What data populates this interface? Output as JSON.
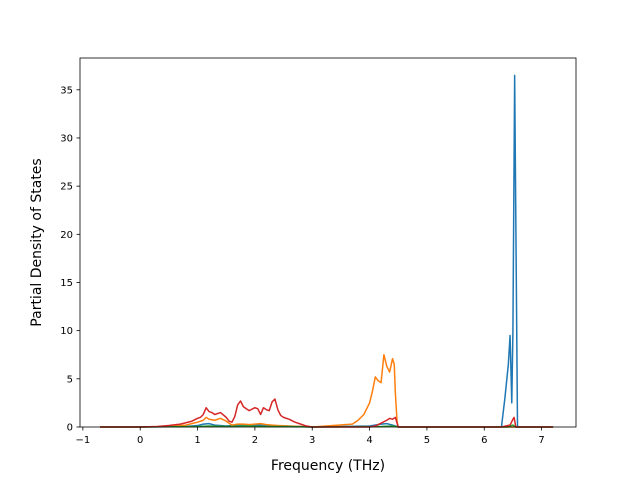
{
  "chart_data": {
    "type": "line",
    "title": "",
    "xlabel": "Frequency (THz)",
    "ylabel": "Partial Density of States",
    "xlim": [
      -1.05,
      7.6
    ],
    "ylim": [
      0,
      38.3
    ],
    "xticks": [
      -1,
      0,
      1,
      2,
      3,
      4,
      5,
      6,
      7
    ],
    "yticks": [
      0,
      5,
      10,
      15,
      20,
      25,
      30,
      35
    ],
    "grid": false,
    "legend": "none",
    "series": [
      {
        "color": "#1f77b4",
        "x": [
          -0.7,
          0.0,
          0.8,
          1.0,
          1.1,
          1.2,
          1.3,
          1.5,
          1.7,
          1.8,
          2.0,
          2.2,
          2.4,
          2.8,
          3.0,
          4.0,
          4.2,
          4.3,
          4.4,
          4.48,
          4.52,
          6.3,
          6.36,
          6.42,
          6.45,
          6.48,
          6.5,
          6.53,
          6.58,
          7.2
        ],
        "y": [
          0,
          0,
          0.05,
          0.15,
          0.3,
          0.35,
          0.2,
          0.1,
          0.2,
          0.25,
          0.2,
          0.15,
          0.1,
          0.05,
          0,
          0.1,
          0.3,
          0.35,
          0.2,
          0.05,
          0,
          0,
          3.0,
          6.5,
          9.5,
          2.5,
          10.0,
          36.5,
          0,
          0
        ]
      },
      {
        "color": "#ff7f0e",
        "x": [
          -0.7,
          0.0,
          0.5,
          0.8,
          0.9,
          1.0,
          1.1,
          1.15,
          1.2,
          1.3,
          1.4,
          1.5,
          1.6,
          1.7,
          1.8,
          1.9,
          2.0,
          2.1,
          2.2,
          2.3,
          2.4,
          2.6,
          2.8,
          3.0,
          3.7,
          3.8,
          3.9,
          4.0,
          4.05,
          4.1,
          4.15,
          4.2,
          4.25,
          4.3,
          4.35,
          4.4,
          4.43,
          4.45,
          4.48,
          4.5,
          7.2
        ],
        "y": [
          0,
          0,
          0.05,
          0.2,
          0.35,
          0.5,
          0.7,
          1.0,
          0.8,
          0.7,
          0.9,
          0.6,
          0.2,
          0.3,
          0.3,
          0.25,
          0.3,
          0.35,
          0.25,
          0.2,
          0.15,
          0.1,
          0.05,
          0,
          0.3,
          0.7,
          1.3,
          2.5,
          3.7,
          5.2,
          4.8,
          4.6,
          7.5,
          6.3,
          5.7,
          7.1,
          6.5,
          3.5,
          0.5,
          0,
          0
        ]
      },
      {
        "color": "#2ca02c",
        "x": [
          -0.7,
          0.0,
          1.0,
          1.2,
          1.5,
          1.8,
          2.2,
          2.6,
          3.0,
          4.2,
          4.4,
          4.5,
          6.4,
          6.5,
          6.55,
          7.2
        ],
        "y": [
          0,
          0,
          0.05,
          0.1,
          0.05,
          0.1,
          0.05,
          0.05,
          0,
          0.05,
          0.1,
          0,
          0,
          0.2,
          0,
          0
        ]
      },
      {
        "color": "#d62728",
        "x": [
          -0.7,
          0.0,
          0.3,
          0.5,
          0.7,
          0.9,
          1.0,
          1.05,
          1.1,
          1.15,
          1.2,
          1.25,
          1.3,
          1.4,
          1.5,
          1.55,
          1.6,
          1.65,
          1.7,
          1.75,
          1.8,
          1.85,
          1.9,
          2.0,
          2.05,
          2.1,
          2.15,
          2.2,
          2.25,
          2.3,
          2.35,
          2.4,
          2.45,
          2.5,
          2.6,
          2.7,
          2.8,
          2.9,
          3.0,
          4.0,
          4.1,
          4.2,
          4.3,
          4.35,
          4.4,
          4.45,
          4.5,
          6.3,
          6.45,
          6.5,
          6.52,
          6.55,
          7.2
        ],
        "y": [
          0,
          0,
          0.05,
          0.15,
          0.3,
          0.6,
          0.9,
          1.0,
          1.3,
          2.0,
          1.6,
          1.5,
          1.3,
          1.5,
          1.0,
          0.6,
          0.5,
          1.1,
          2.3,
          2.7,
          2.1,
          1.9,
          1.7,
          2.0,
          1.9,
          1.3,
          2.0,
          1.8,
          1.7,
          2.6,
          2.9,
          1.8,
          1.2,
          1.0,
          0.8,
          0.5,
          0.3,
          0.1,
          0,
          0,
          0.1,
          0.4,
          0.7,
          0.9,
          0.8,
          1.0,
          0,
          0,
          0.2,
          0.8,
          1.0,
          0,
          0
        ]
      }
    ]
  }
}
